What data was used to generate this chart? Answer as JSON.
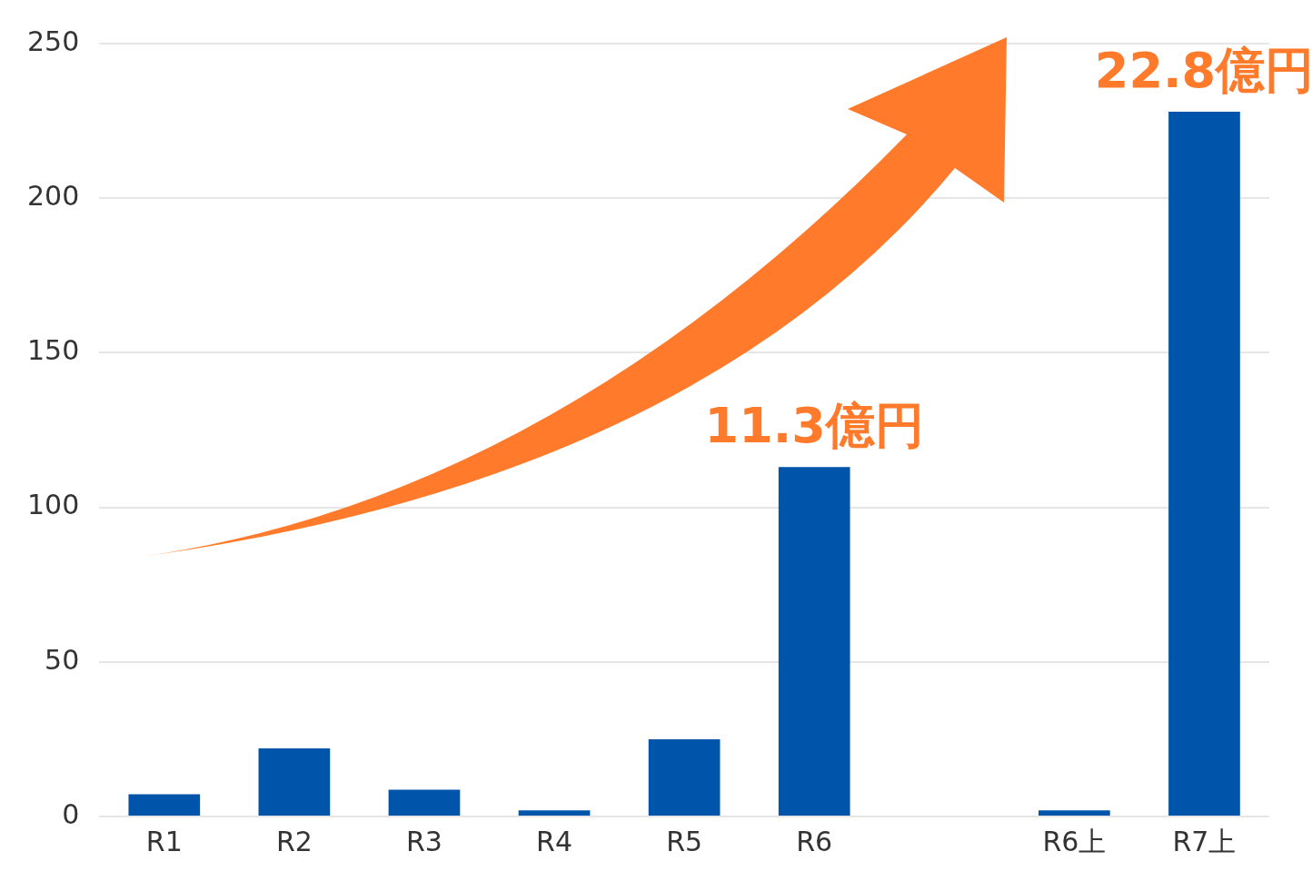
{
  "chart_data": {
    "type": "bar",
    "categories": [
      "R1",
      "R2",
      "R3",
      "R4",
      "R5",
      "R6",
      null,
      "R6上",
      "R7上"
    ],
    "values": [
      7.2,
      22,
      8.7,
      2,
      25,
      113,
      null,
      2,
      228
    ],
    "color": "#0054aa",
    "ylim": [
      0,
      250
    ],
    "yticks": [
      0,
      50,
      100,
      150,
      200,
      250
    ],
    "grid": "y",
    "annotations": [
      {
        "text": "11.3億円",
        "x": "R6",
        "y": 113
      },
      {
        "text": "22.8億円",
        "x": "R7上",
        "y": 228
      }
    ]
  }
}
